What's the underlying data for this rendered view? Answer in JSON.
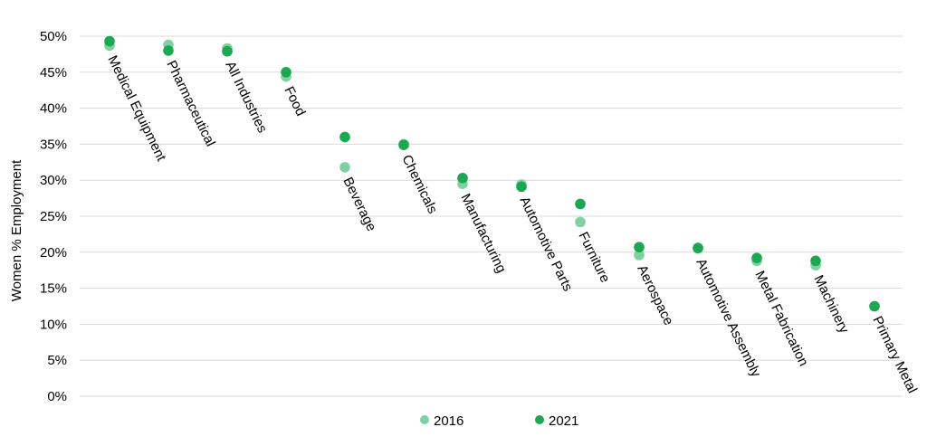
{
  "chart_data": {
    "type": "scatter",
    "ylabel": "Women % Employment",
    "xlabel": "",
    "ylim": [
      0,
      50
    ],
    "yticks": [
      0,
      5,
      10,
      15,
      20,
      25,
      30,
      35,
      40,
      45,
      50
    ],
    "ytick_labels": [
      "0%",
      "5%",
      "10%",
      "15%",
      "20%",
      "25%",
      "30%",
      "35%",
      "40%",
      "45%",
      "50%"
    ],
    "grid": true,
    "legend_position": "bottom",
    "categories": [
      "Medical Equipment",
      "Pharmaceutical",
      "All Industries",
      "Food",
      "Beverage",
      "Chemicals",
      "Manufacturing",
      "Automotive Parts",
      "Furniture",
      "Aerospace",
      "Automotive Assembly",
      "Metal Fabrication",
      "Machinery",
      "Primary Metal"
    ],
    "series": [
      {
        "name": "2016",
        "color": "#7fd1a3",
        "values": [
          48.7,
          48.8,
          48.3,
          44.4,
          31.8,
          35.0,
          29.5,
          29.4,
          24.2,
          19.6,
          20.5,
          18.8,
          18.2,
          12.5
        ]
      },
      {
        "name": "2021",
        "color": "#1aa851",
        "values": [
          49.3,
          48.0,
          47.9,
          45.0,
          36.0,
          34.9,
          30.3,
          29.1,
          26.7,
          20.7,
          20.6,
          19.2,
          18.8,
          12.5
        ]
      }
    ]
  }
}
